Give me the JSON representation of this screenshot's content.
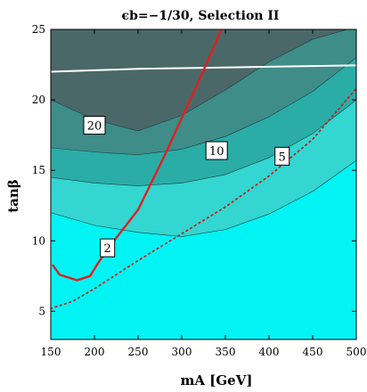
{
  "chart_data": {
    "type": "contour",
    "title": "ϵb=−1/30, Selection II",
    "xlabel": "mA [GeV]",
    "ylabel": "tanβ",
    "xlim": [
      150,
      500
    ],
    "ylim": [
      3,
      25
    ],
    "xticks": [
      150,
      200,
      250,
      300,
      350,
      400,
      450,
      500
    ],
    "yticks": [
      5,
      10,
      15,
      20,
      25
    ],
    "contour_levels": [
      {
        "label": "2",
        "fill": "#33d6d0",
        "boundary": [
          [
            150,
            12.0
          ],
          [
            200,
            11.1
          ],
          [
            250,
            10.6
          ],
          [
            300,
            10.3
          ],
          [
            350,
            10.8
          ],
          [
            400,
            11.9
          ],
          [
            450,
            13.5
          ],
          [
            500,
            15.7
          ]
        ]
      },
      {
        "label": "5",
        "fill": "#2aada7",
        "boundary": [
          [
            150,
            14.5
          ],
          [
            200,
            14.1
          ],
          [
            250,
            13.9
          ],
          [
            300,
            14.1
          ],
          [
            350,
            14.7
          ],
          [
            400,
            15.9
          ],
          [
            450,
            17.6
          ],
          [
            500,
            20.0
          ]
        ]
      },
      {
        "label": "10",
        "fill": "#3e8d89",
        "boundary": [
          [
            150,
            16.6
          ],
          [
            200,
            16.3
          ],
          [
            250,
            16.1
          ],
          [
            300,
            16.5
          ],
          [
            350,
            17.4
          ],
          [
            400,
            18.8
          ],
          [
            450,
            20.6
          ],
          [
            500,
            23.0
          ]
        ]
      },
      {
        "label": "20",
        "fill": "#4b6869",
        "boundary": [
          [
            150,
            20.0
          ],
          [
            200,
            18.6
          ],
          [
            250,
            17.8
          ],
          [
            300,
            18.9
          ],
          [
            350,
            20.7
          ],
          [
            400,
            22.7
          ],
          [
            450,
            24.3
          ],
          [
            490,
            25.0
          ]
        ]
      }
    ],
    "base_fill": "#00f4f4",
    "contour_label_positions": [
      {
        "text": "20",
        "x": 200,
        "y": 18.2
      },
      {
        "text": "10",
        "x": 340,
        "y": 16.4
      },
      {
        "text": "5",
        "x": 415,
        "y": 16.0
      },
      {
        "text": "2",
        "x": 215,
        "y": 9.5
      }
    ],
    "series": [
      {
        "style": "white-solid",
        "color": "#ffffff",
        "points": [
          [
            150,
            22.0
          ],
          [
            200,
            22.1
          ],
          [
            250,
            22.2
          ],
          [
            300,
            22.25
          ],
          [
            350,
            22.3
          ],
          [
            400,
            22.35
          ],
          [
            450,
            22.4
          ],
          [
            500,
            22.45
          ]
        ]
      },
      {
        "style": "red-solid",
        "color": "#e02020",
        "points": [
          [
            152,
            8.3
          ],
          [
            160,
            7.6
          ],
          [
            180,
            7.2
          ],
          [
            195,
            7.5
          ],
          [
            205,
            8.5
          ],
          [
            220,
            9.8
          ],
          [
            250,
            12.2
          ],
          [
            280,
            16.0
          ],
          [
            300,
            18.7
          ],
          [
            320,
            21.4
          ],
          [
            335,
            23.5
          ],
          [
            345,
            25.0
          ]
        ]
      },
      {
        "style": "red-dotted",
        "color": "#c02020",
        "points": [
          [
            150,
            5.2
          ],
          [
            175,
            5.7
          ],
          [
            200,
            6.6
          ],
          [
            250,
            8.6
          ],
          [
            300,
            10.5
          ],
          [
            350,
            12.4
          ],
          [
            400,
            14.6
          ],
          [
            450,
            17.2
          ],
          [
            500,
            20.8
          ]
        ]
      }
    ]
  }
}
